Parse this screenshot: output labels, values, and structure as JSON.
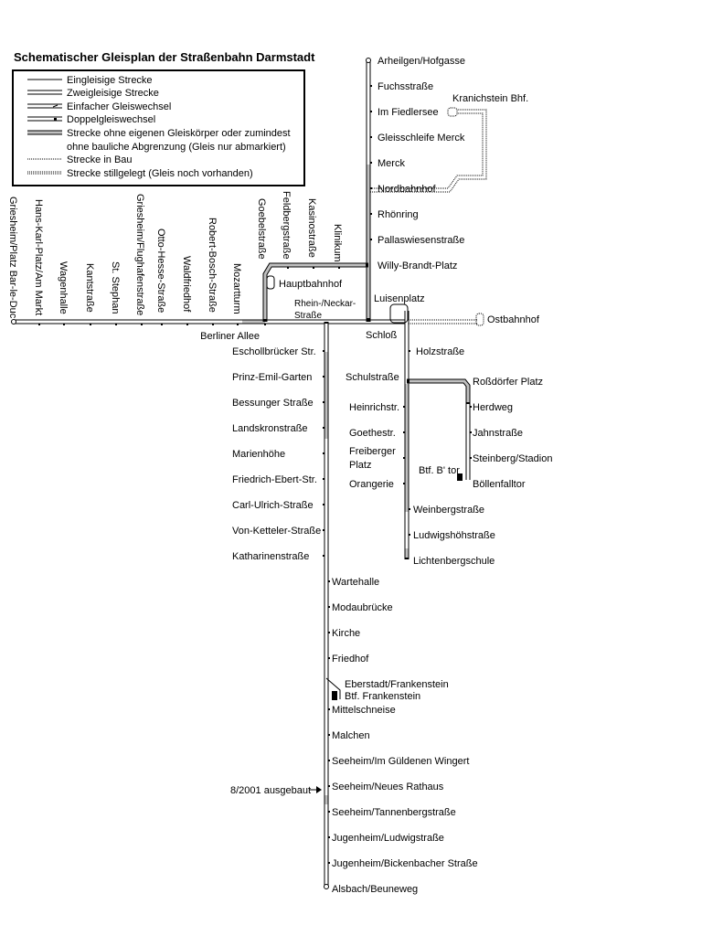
{
  "title": "Schematischer Gleisplan der Straßenbahn Darmstadt",
  "legend": [
    "Eingleisige Strecke",
    "Zweigleisige Strecke",
    "Einfacher Gleiswechsel",
    "Doppelgleiswechsel",
    "Strecke ohne eigenen Gleiskörper oder zumindest",
    "ohne bauliche Abgrenzung (Gleis nur abmarkiert)",
    "Strecke in Bau",
    "Strecke stillgelegt (Gleis noch vorhanden)"
  ],
  "colors": {
    "track": "#000000",
    "street_running": "#c0c0c0"
  },
  "west_stations": [
    "Griesheim/Platz Bar-le-Duc",
    "Hans-Karl-Platz/Am Markt",
    "Wagenhalle",
    "Kantstraße",
    "St. Stephan",
    "Griesheim/Flughafenstraße",
    "Otto-Hesse-Straße",
    "Waldfriedhof",
    "Robert-Bosch-Straße",
    "Mozartturm",
    "Goebelstraße",
    "Feldbergstraße",
    "Kasinostraße",
    "Klinikum"
  ],
  "north_stations": [
    "Arheilgen/Hofgasse",
    "Fuchsstraße",
    "Im Fiedlersee",
    "Gleisschleife Merck",
    "Merck",
    "Nordbahnhof",
    "Rhönring",
    "Pallaswiesenstraße",
    "Willy-Brandt-Platz"
  ],
  "center": {
    "kranichstein": "Kranichstein Bhf.",
    "hauptbahnhof": "Hauptbahnhof",
    "rhein_neckar_1": "Rhein-/Neckar-",
    "rhein_neckar_2": "Straße",
    "luisenplatz": "Luisenplatz",
    "ostbahnhof": "Ostbahnhof",
    "berliner_allee": "Berliner Allee",
    "schloss": "Schloß"
  },
  "south_left": [
    "Eschollbrücker Str.",
    "Prinz-Emil-Garten",
    "Bessunger Straße",
    "Landskronstraße",
    "Marienhöhe",
    "Friedrich-Ebert-Str.",
    "Carl-Ulrich-Straße",
    "Von-Ketteler-Straße",
    "Katharinenstraße"
  ],
  "south_right": [
    "Wartehalle",
    "Modaubrücke",
    "Kirche",
    "Friedhof",
    "Eberstadt/Frankenstein",
    "Btf. Frankenstein",
    "Mittelschneise",
    "Malchen",
    "Seeheim/Im Güldenen Wingert",
    "Seeheim/Neues Rathaus",
    "Seeheim/Tannenbergstraße",
    "Jugenheim/Ludwigstraße",
    "Jugenheim/Bickenbacher Straße",
    "Alsbach/Beuneweg"
  ],
  "annotation": "8/2001 ausgebaut",
  "east_left": [
    "Schulstraße",
    "Heinrichstr.",
    "Goethestr.",
    "Freiberger",
    "Platz",
    "Orangerie"
  ],
  "east_right": [
    "Holzstraße",
    "Weinbergstraße",
    "Ludwigshöhstraße",
    "Lichtenbergschule"
  ],
  "bf_stations": [
    "Roßdörfer Platz",
    "Herdweg",
    "Jahnstraße",
    "Steinberg/Stadion",
    "Böllenfalltor"
  ],
  "depot_btor": "Btf. B' tor"
}
